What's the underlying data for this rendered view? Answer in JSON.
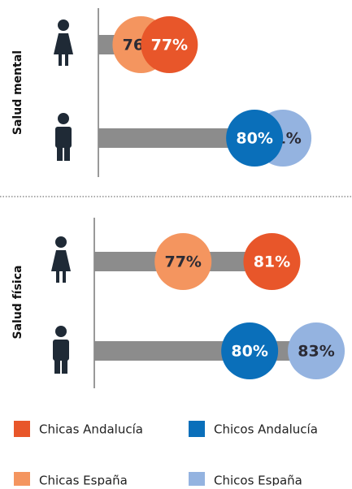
{
  "chart_data": [
    {
      "type": "dot",
      "title": "Salud mental",
      "xlim": [
        74.5,
        82.2
      ],
      "series": [
        {
          "name": "Chicas Andalucía",
          "color": "#e8562a",
          "values": [
            77,
            null
          ],
          "value_labels": [
            "77%",
            null
          ]
        },
        {
          "name": "Chicos Andalucía",
          "color": "#0a6fba",
          "values": [
            null,
            80
          ],
          "value_labels": [
            null,
            "80%"
          ]
        },
        {
          "name": "Chicas España",
          "color": "#f4955f",
          "values": [
            76,
            null
          ],
          "value_labels": [
            "76%",
            null
          ]
        },
        {
          "name": "Chicos España",
          "color": "#94b3e0",
          "values": [
            null,
            81
          ],
          "value_labels": [
            null,
            "81%"
          ]
        }
      ]
    },
    {
      "type": "dot",
      "title": "Salud física",
      "xlim": [
        73,
        84.5
      ],
      "series": [
        {
          "color": "#e8562a",
          "values": [
            81,
            null
          ],
          "value_labels": [
            "81%",
            null
          ]
        },
        {
          "color": "#0a6fba",
          "values": [
            null,
            80
          ],
          "value_labels": [
            null,
            "80%"
          ]
        },
        {
          "color": "#f4955f",
          "values": [
            77,
            null
          ],
          "value_labels": [
            "77%",
            null
          ]
        },
        {
          "color": "#94b3e0",
          "values": [
            null,
            83
          ],
          "value_labels": [
            null,
            "83%"
          ]
        }
      ]
    }
  ]
}
